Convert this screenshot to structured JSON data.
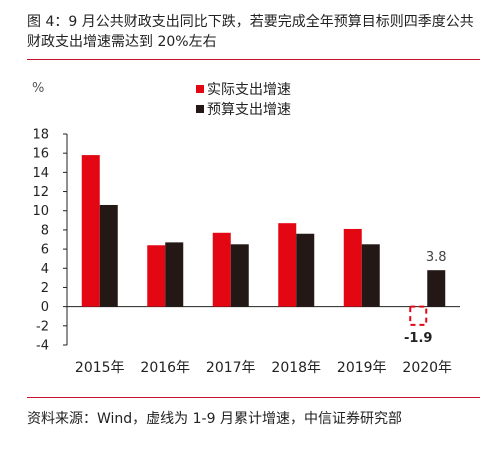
{
  "figure_title": "图 4：9 月公共财政支出同比下跌，若要完成全年预算目标则四季度公共财政支出增速需达到 20%左右",
  "source_note": "资料来源：Wind，虚线为 1-9 月累计增速，中信证券研究部",
  "colors": {
    "actual": "#e30613",
    "budget": "#231815",
    "rule": "#c8102e"
  },
  "chart_data": {
    "type": "bar",
    "title": "",
    "ylabel": "%",
    "xlabel": "",
    "ylim": [
      -4,
      18
    ],
    "yticks": [
      18,
      16,
      14,
      12,
      10,
      8,
      6,
      4,
      2,
      0,
      -2,
      -4
    ],
    "categories": [
      "2015年",
      "2016年",
      "2017年",
      "2018年",
      "2019年",
      "2020年"
    ],
    "legend_position": "top-center",
    "grid": false,
    "series": [
      {
        "name": "实际支出增速",
        "color": "#e30613",
        "values": [
          15.8,
          6.4,
          7.7,
          8.7,
          8.1,
          -1.9
        ],
        "dashed_index": 5,
        "dashed_label": "-1.9"
      },
      {
        "name": "预算支出增速",
        "color": "#231815",
        "values": [
          10.6,
          6.7,
          6.5,
          7.6,
          6.5,
          3.8
        ],
        "labeled_index": 5,
        "value_label": "3.8"
      }
    ]
  }
}
